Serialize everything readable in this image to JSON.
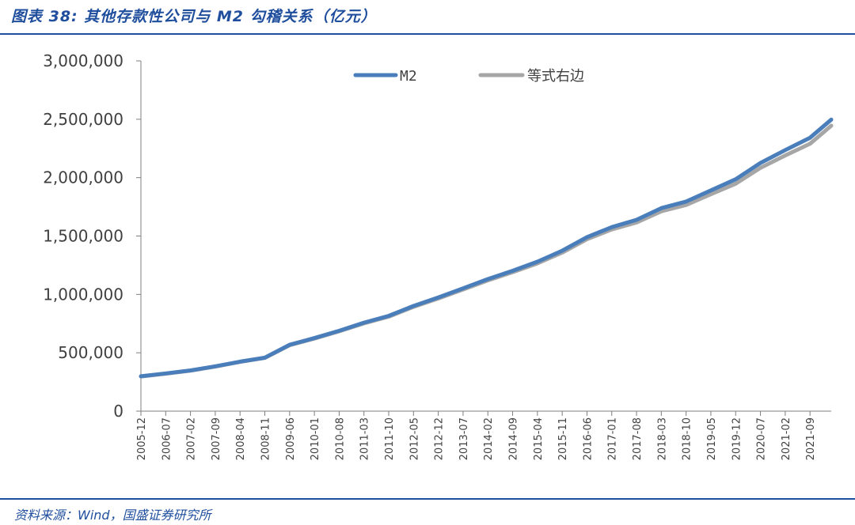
{
  "figure": {
    "title": "图表 38: 其他存款性公司与 M2 勾稽关系（亿元）",
    "source": "资料来源：Wind，国盛证券研究所"
  },
  "colors": {
    "accent": "#1f4e9d",
    "m2": "#4a7ebb",
    "rhs": "#a6a6a6"
  },
  "chart_data": {
    "type": "line",
    "title": "图表 38: 其他存款性公司与 M2 勾稽关系（亿元）",
    "xlabel": "",
    "ylabel": "",
    "ylim": [
      0,
      3000000
    ],
    "yticks": [
      "0",
      "500,000",
      "1,000,000",
      "1,500,000",
      "2,000,000",
      "2,500,000",
      "3,000,000"
    ],
    "x_tick_labels": [
      "2005-12",
      "2006-07",
      "2007-02",
      "2007-09",
      "2008-04",
      "2008-11",
      "2009-06",
      "2010-01",
      "2010-08",
      "2011-03",
      "2011-10",
      "2012-05",
      "2012-12",
      "2013-07",
      "2014-02",
      "2014-09",
      "2015-04",
      "2015-11",
      "2016-06",
      "2017-01",
      "2017-08",
      "2018-03",
      "2018-10",
      "2019-05",
      "2019-12",
      "2020-07",
      "2021-02",
      "2021-09"
    ],
    "x_range": [
      "2005-12",
      "2022-03"
    ],
    "legend_position": "top",
    "grid": false,
    "series": [
      {
        "name": "M2",
        "color": "#4a7ebb",
        "points": [
          [
            "2005-12",
            298756
          ],
          [
            "2006-07",
            323000
          ],
          [
            "2007-02",
            349000
          ],
          [
            "2007-09",
            384000
          ],
          [
            "2008-04",
            424000
          ],
          [
            "2008-11",
            458000
          ],
          [
            "2009-06",
            568000
          ],
          [
            "2010-01",
            626000
          ],
          [
            "2010-08",
            688000
          ],
          [
            "2011-03",
            758000
          ],
          [
            "2011-10",
            816000
          ],
          [
            "2012-05",
            901000
          ],
          [
            "2012-12",
            974000
          ],
          [
            "2013-07",
            1052000
          ],
          [
            "2014-02",
            1131000
          ],
          [
            "2014-09",
            1202000
          ],
          [
            "2015-04",
            1280000
          ],
          [
            "2015-11",
            1374000
          ],
          [
            "2016-06",
            1490000
          ],
          [
            "2017-01",
            1576000
          ],
          [
            "2017-08",
            1639000
          ],
          [
            "2018-03",
            1739000
          ],
          [
            "2018-10",
            1795000
          ],
          [
            "2019-05",
            1891000
          ],
          [
            "2019-12",
            1986000
          ],
          [
            "2020-07",
            2126000
          ],
          [
            "2021-02",
            2236000
          ],
          [
            "2021-09",
            2342000
          ],
          [
            "2022-03",
            2497000
          ]
        ]
      },
      {
        "name": "等式右边",
        "color": "#a6a6a6",
        "points": [
          [
            "2005-12",
            297000
          ],
          [
            "2006-07",
            321000
          ],
          [
            "2007-02",
            347000
          ],
          [
            "2007-09",
            382000
          ],
          [
            "2008-04",
            422000
          ],
          [
            "2008-11",
            456000
          ],
          [
            "2009-06",
            565000
          ],
          [
            "2010-01",
            622000
          ],
          [
            "2010-08",
            684000
          ],
          [
            "2011-03",
            752000
          ],
          [
            "2011-10",
            809000
          ],
          [
            "2012-05",
            893000
          ],
          [
            "2012-12",
            965000
          ],
          [
            "2013-07",
            1042000
          ],
          [
            "2014-02",
            1120000
          ],
          [
            "2014-09",
            1190000
          ],
          [
            "2015-04",
            1266000
          ],
          [
            "2015-11",
            1358000
          ],
          [
            "2016-06",
            1472000
          ],
          [
            "2017-01",
            1556000
          ],
          [
            "2017-08",
            1616000
          ],
          [
            "2018-03",
            1712000
          ],
          [
            "2018-10",
            1766000
          ],
          [
            "2019-05",
            1858000
          ],
          [
            "2019-12",
            1948000
          ],
          [
            "2020-07",
            2084000
          ],
          [
            "2021-02",
            2190000
          ],
          [
            "2021-09",
            2290000
          ],
          [
            "2022-03",
            2445000
          ]
        ]
      }
    ]
  }
}
